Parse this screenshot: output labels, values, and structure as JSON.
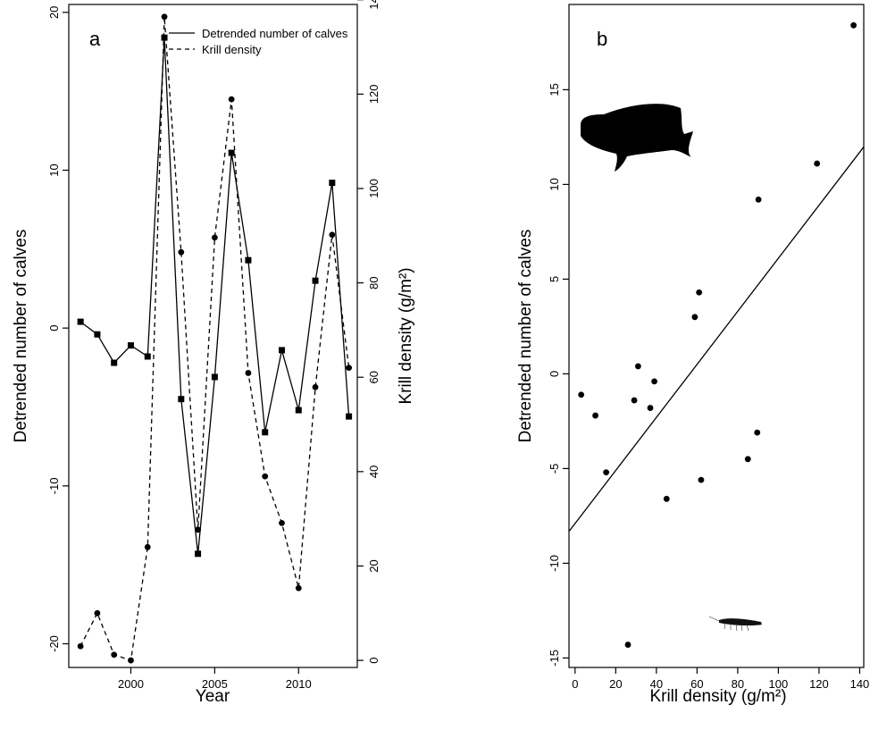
{
  "chart_data": [
    {
      "panel": "a",
      "type": "line",
      "xlabel": "Year",
      "ylabel": "Detrended number of calves",
      "y2label": "Krill density (g/m²)",
      "xlim": [
        1996.3,
        2013.5
      ],
      "ylim": [
        -21.5,
        20.5
      ],
      "y2lim": [
        -1.5,
        139
      ],
      "xticks": [
        2000,
        2005,
        2010
      ],
      "yticks": [
        -20,
        -10,
        0,
        10,
        20
      ],
      "y2ticks": [
        0,
        20,
        40,
        60,
        80,
        100,
        120,
        140
      ],
      "x": [
        1997,
        1998,
        1999,
        2000,
        2001,
        2002,
        2003,
        2004,
        2005,
        2006,
        2007,
        2008,
        2009,
        2010,
        2011,
        2012,
        2013
      ],
      "legend": "top-right",
      "series": [
        {
          "name": "Detrended number of calves",
          "axis": "left",
          "style": "solid",
          "marker": "square",
          "values": [
            0.4,
            -0.4,
            -2.2,
            -1.1,
            -1.8,
            18.4,
            -4.5,
            -14.3,
            -3.1,
            11.1,
            4.3,
            -6.6,
            -1.4,
            -5.2,
            3.0,
            9.2,
            -5.6
          ]
        },
        {
          "name": "Krill density",
          "axis": "right",
          "style": "dashed",
          "marker": "circle",
          "values": [
            3.0,
            10.0,
            1.2,
            0.0,
            24.0,
            136.4,
            86.5,
            27.7,
            89.6,
            118.9,
            60.9,
            39.0,
            29.1,
            15.3,
            57.9,
            90.2,
            62.0
          ]
        }
      ]
    },
    {
      "panel": "b",
      "type": "scatter",
      "xlabel": "Krill density (g/m²)",
      "ylabel": "Detrended number of calves",
      "xlim": [
        -3,
        142
      ],
      "ylim": [
        -15.5,
        19.5
      ],
      "xticks": [
        0,
        20,
        40,
        60,
        80,
        100,
        120,
        140
      ],
      "yticks": [
        -15,
        -10,
        -5,
        0,
        5,
        10,
        15
      ],
      "points": [
        [
          3.0,
          -1.1
        ],
        [
          10.0,
          -2.2
        ],
        [
          15.3,
          -5.2
        ],
        [
          26.0,
          -14.3
        ],
        [
          29.1,
          -1.4
        ],
        [
          31.0,
          0.4
        ],
        [
          37.0,
          -1.8
        ],
        [
          39.0,
          -0.4
        ],
        [
          45.0,
          -6.6
        ],
        [
          58.9,
          3.0
        ],
        [
          61.0,
          4.3
        ],
        [
          62.0,
          -5.6
        ],
        [
          85.0,
          -4.5
        ],
        [
          89.6,
          -3.1
        ],
        [
          90.2,
          9.2
        ],
        [
          119.0,
          11.1
        ],
        [
          137.0,
          18.4
        ]
      ],
      "fit_line": {
        "intercept": -7.9,
        "slope": 0.14
      }
    }
  ]
}
